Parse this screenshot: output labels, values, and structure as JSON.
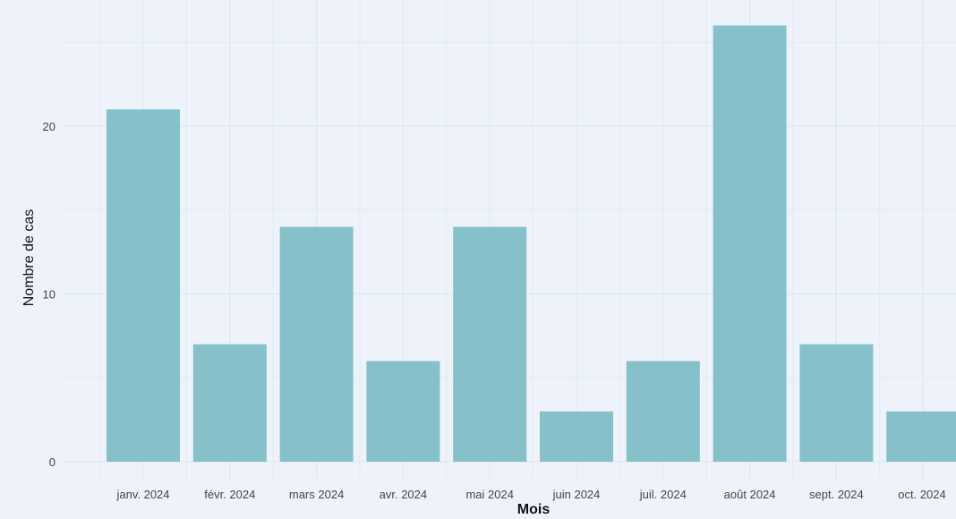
{
  "chart_data": {
    "type": "bar",
    "title": "",
    "xlabel": "Mois",
    "ylabel": "Nombre de cas",
    "categories": [
      "janv. 2024",
      "févr. 2024",
      "mars 2024",
      "avr. 2024",
      "mai 2024",
      "juin 2024",
      "juil. 2024",
      "août 2024",
      "sept. 2024",
      "oct. 2024"
    ],
    "values": [
      21,
      7,
      14,
      6,
      14,
      3,
      6,
      26,
      7,
      3
    ],
    "yticks": [
      0,
      10,
      20
    ],
    "ylim": [
      0,
      27
    ],
    "grid": true,
    "legend": "none",
    "colors": {
      "bar": "#86c1ca",
      "background": "#eef3fb",
      "grid": "#e1e7f0"
    }
  }
}
